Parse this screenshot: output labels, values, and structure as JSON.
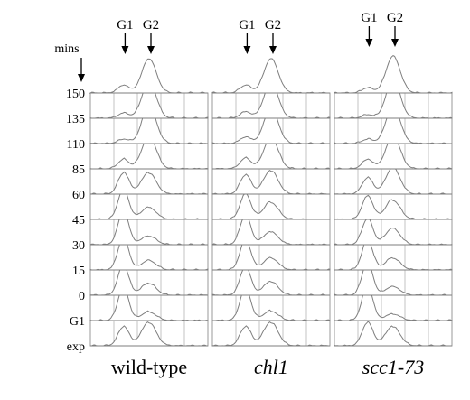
{
  "chart_data": {
    "type": "line",
    "ylabel": "mins",
    "row_labels": [
      "150",
      "135",
      "110",
      "85",
      "60",
      "45",
      "30",
      "15",
      "0",
      "G1",
      "exp"
    ],
    "panels": [
      {
        "name": "wild-type",
        "italic": false,
        "markers": [
          "G1",
          "G2"
        ],
        "g1_g2_fraction_by_row": {
          "150": [
            0.18,
            0.82
          ],
          "135": [
            0.12,
            0.88
          ],
          "110": [
            0.1,
            0.9
          ],
          "85": [
            0.22,
            0.78
          ],
          "60": [
            0.5,
            0.5
          ],
          "45": [
            0.72,
            0.28
          ],
          "30": [
            0.8,
            0.2
          ],
          "15": [
            0.78,
            0.22
          ],
          "0": [
            0.72,
            0.28
          ],
          "G1": [
            0.8,
            0.2
          ],
          "exp": [
            0.45,
            0.55
          ]
        }
      },
      {
        "name": "chl1",
        "italic": true,
        "markers": [
          "G1",
          "G2"
        ],
        "g1_g2_fraction_by_row": {
          "150": [
            0.18,
            0.82
          ],
          "135": [
            0.15,
            0.85
          ],
          "110": [
            0.15,
            0.85
          ],
          "85": [
            0.25,
            0.75
          ],
          "60": [
            0.45,
            0.55
          ],
          "45": [
            0.6,
            0.4
          ],
          "30": [
            0.7,
            0.3
          ],
          "15": [
            0.72,
            0.28
          ],
          "0": [
            0.68,
            0.32
          ],
          "G1": [
            0.78,
            0.22
          ],
          "exp": [
            0.45,
            0.55
          ]
        }
      },
      {
        "name": "scc1-73",
        "italic": true,
        "markers": [
          "G1",
          "G2"
        ],
        "g1_g2_fraction_by_row": {
          "150": [
            0.12,
            0.88
          ],
          "135": [
            0.08,
            0.92
          ],
          "110": [
            0.1,
            0.9
          ],
          "85": [
            0.22,
            0.78
          ],
          "60": [
            0.38,
            0.62
          ],
          "45": [
            0.55,
            0.45
          ],
          "30": [
            0.62,
            0.38
          ],
          "15": [
            0.72,
            0.28
          ],
          "0": [
            0.8,
            0.2
          ],
          "G1": [
            0.85,
            0.15
          ],
          "exp": [
            0.55,
            0.45
          ]
        }
      }
    ]
  },
  "colors": {
    "trace": "#7e7e7e",
    "grid": "#b4b4b4",
    "frame": "#9a9a9a"
  }
}
